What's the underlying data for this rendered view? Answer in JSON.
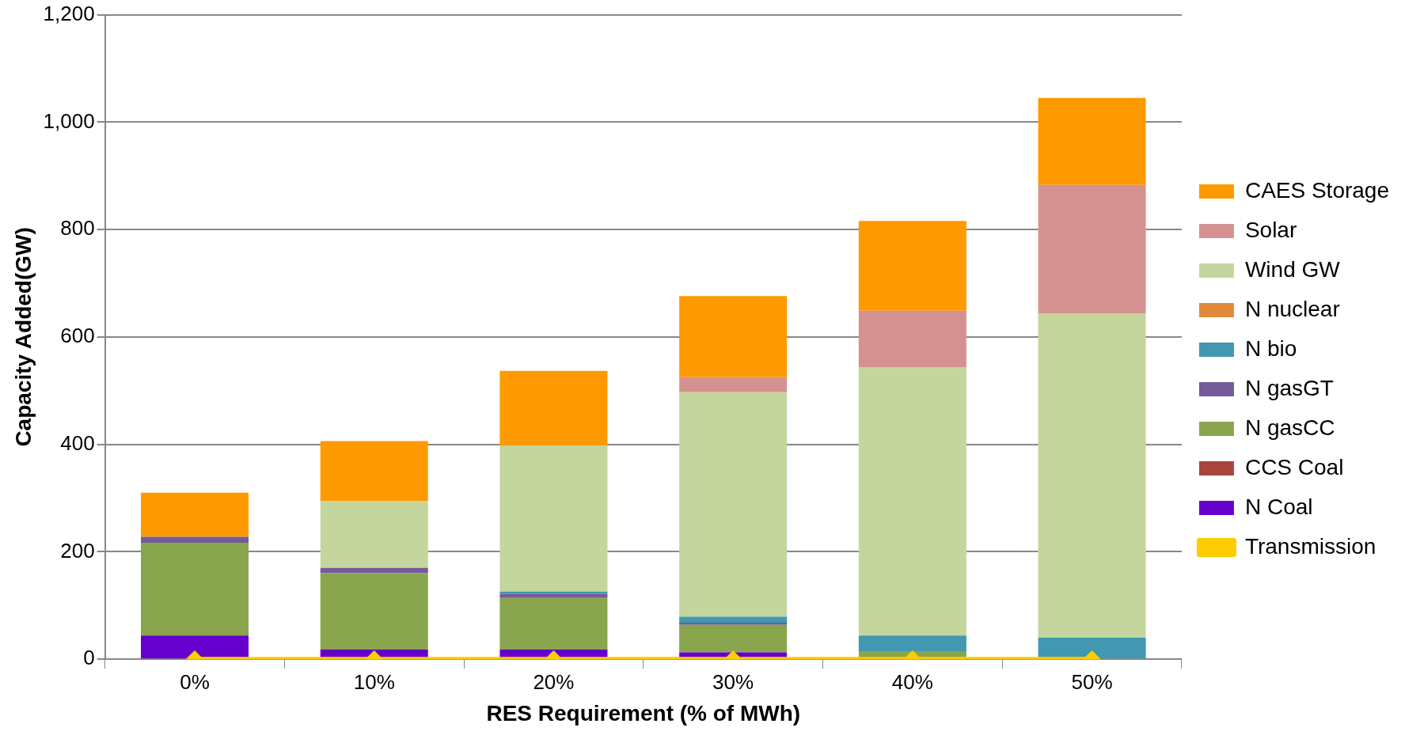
{
  "chart_data": {
    "type": "bar",
    "stacked": true,
    "xlabel": "RES Requirement (% of MWh)",
    "ylabel": "Capacity Added(GW)",
    "categories": [
      "0%",
      "10%",
      "20%",
      "30%",
      "40%",
      "50%"
    ],
    "series": [
      {
        "name": "N Coal",
        "color": "#6600cc",
        "values": [
          44,
          18,
          18,
          13,
          0,
          0
        ]
      },
      {
        "name": "CCS Coal",
        "color": "#a9443e",
        "values": [
          0,
          0,
          0,
          0,
          0,
          0
        ]
      },
      {
        "name": "N gasCC",
        "color": "#89a54e",
        "values": [
          173,
          142,
          96,
          51,
          15,
          0
        ]
      },
      {
        "name": "N gasGT",
        "color": "#745b99",
        "values": [
          11,
          10,
          8,
          4,
          0,
          0
        ]
      },
      {
        "name": "N bio",
        "color": "#4198b0",
        "values": [
          0,
          0,
          4,
          11,
          29,
          40
        ]
      },
      {
        "name": "N nuclear",
        "color": "#e08a3c",
        "values": [
          0,
          0,
          0,
          0,
          0,
          0
        ]
      },
      {
        "name": "Wind GW",
        "color": "#c4d69d",
        "values": [
          0,
          125,
          272,
          418,
          500,
          604
        ]
      },
      {
        "name": "Solar",
        "color": "#d39290",
        "values": [
          0,
          0,
          0,
          28,
          105,
          239
        ]
      },
      {
        "name": "CAES Storage",
        "color": "#ff9900",
        "values": [
          82,
          111,
          139,
          151,
          167,
          162
        ]
      },
      {
        "name": "Transmission",
        "type": "line",
        "color": "#ffcc00",
        "values": [
          0,
          0,
          0,
          0,
          0,
          0
        ]
      }
    ],
    "ylim": [
      0,
      1200
    ],
    "yticks": [
      0,
      {
        "value": 200,
        "label": "200"
      },
      {
        "value": 400,
        "label": "400"
      },
      {
        "value": 600,
        "label": "600"
      },
      {
        "value": 800,
        "label": "800"
      },
      {
        "value": 1000,
        "label": "1,000"
      },
      {
        "value": 1200,
        "label": "1,200"
      }
    ],
    "grid": "y",
    "legend": "right",
    "marker": "diamond"
  }
}
